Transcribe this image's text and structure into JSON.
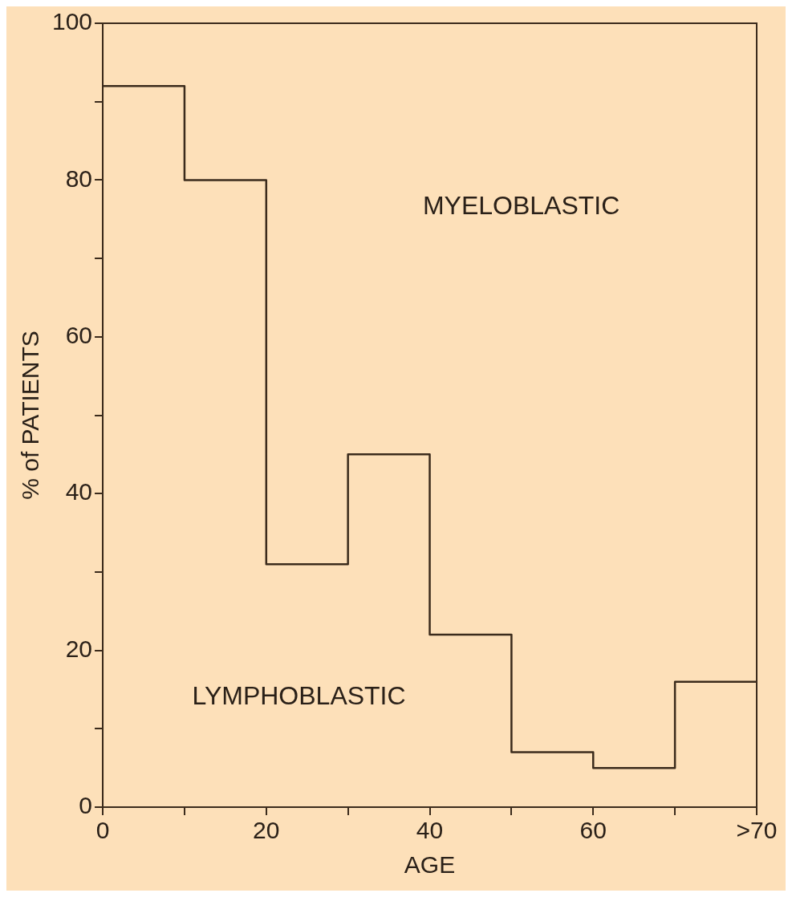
{
  "chart_data": {
    "type": "histogram",
    "xlabel": "AGE",
    "ylabel": "% of PATIENTS",
    "bins": [
      0,
      10,
      20,
      30,
      40,
      50,
      60,
      70,
      80
    ],
    "values": [
      92,
      80,
      31,
      45,
      22,
      7,
      5,
      16
    ],
    "color": "#3b2b1c",
    "xlim": [
      0,
      80
    ],
    "xticks": [
      0,
      {
        "value": 10,
        "label": null
      },
      20,
      {
        "value": 30,
        "label": null
      },
      40,
      {
        "value": 50,
        "label": null
      },
      60,
      {
        "value": 70,
        "label": null
      },
      {
        "value": 80,
        "label": ">70"
      }
    ],
    "ylim": [
      0,
      100
    ],
    "yticks": [
      0,
      {
        "value": 10,
        "label": null
      },
      20,
      {
        "value": 30,
        "label": null
      },
      40,
      {
        "value": 50,
        "label": null
      },
      60,
      {
        "value": 70,
        "label": null
      },
      80,
      {
        "value": 90,
        "label": null
      },
      100
    ],
    "annotations": [
      "MYELOBLASTIC",
      "LYMPHOBLASTIC"
    ],
    "grid": false
  }
}
